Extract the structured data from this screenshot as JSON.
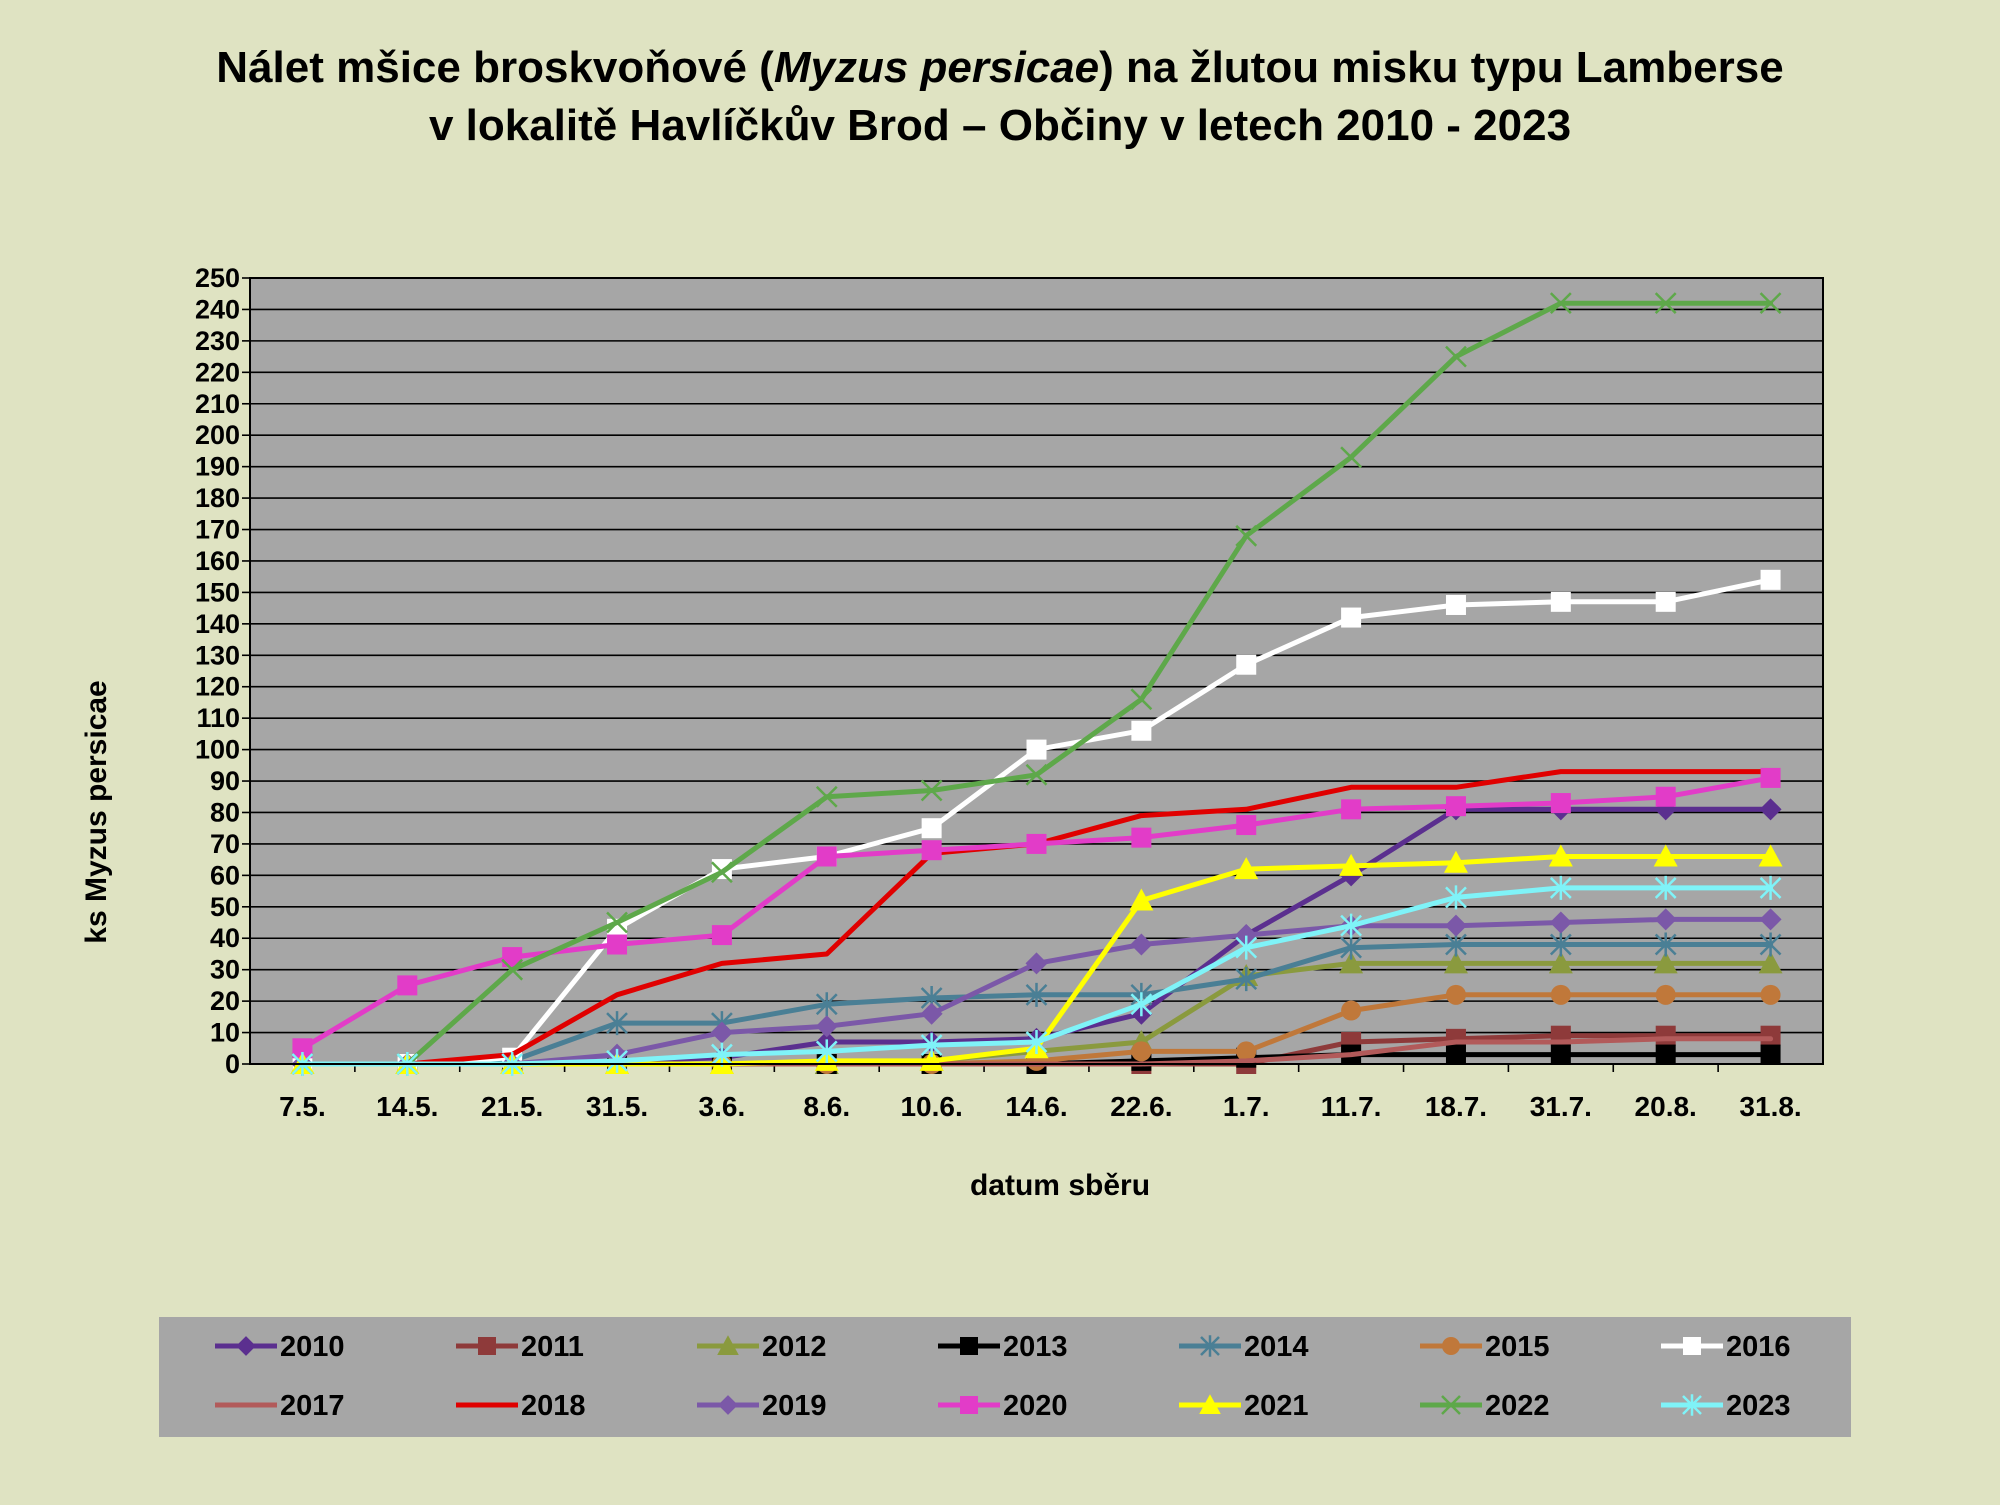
{
  "chart_data": {
    "type": "line",
    "title_line1_pre": "Nálet mšice broskvoňové (",
    "title_line1_italic": "Myzus persicae",
    "title_line1_post": ") na žlutou misku typu Lamberse",
    "title_line2": "v lokalitě Havlíčkův Brod – Občiny v letech 2010 - 2023",
    "xlabel": "datum sběru",
    "ylabel": "ks Myzus persicae",
    "ylim": [
      0,
      250
    ],
    "ytick_step": 10,
    "grid": true,
    "legend_position": "bottom",
    "categories": [
      "7.5.",
      "14.5.",
      "21.5.",
      "31.5.",
      "3.6.",
      "8.6.",
      "10.6.",
      "14.6.",
      "22.6.",
      "1.7.",
      "11.7.",
      "18.7.",
      "31.7.",
      "20.8.",
      "31.8."
    ],
    "series": [
      {
        "name": "2010",
        "color": "#5b2f8f",
        "marker": "diamond",
        "values": [
          0,
          0,
          0,
          1,
          2,
          7,
          7,
          8,
          16,
          41,
          60,
          81,
          81,
          81,
          81
        ]
      },
      {
        "name": "2011",
        "color": "#8e3a3a",
        "marker": "square",
        "values": [
          0,
          0,
          0,
          0,
          0,
          0,
          0,
          0,
          0,
          0,
          7,
          8,
          9,
          9,
          9
        ]
      },
      {
        "name": "2012",
        "color": "#8a9a3e",
        "marker": "triangle",
        "values": [
          0,
          0,
          0,
          0,
          0,
          0,
          1,
          4,
          7,
          28,
          32,
          32,
          32,
          32,
          32
        ]
      },
      {
        "name": "2013",
        "color": "#000000",
        "marker": "square",
        "values": [
          0,
          0,
          0,
          0,
          0,
          0,
          0,
          0,
          1,
          2,
          3,
          3,
          3,
          3,
          3
        ]
      },
      {
        "name": "2014",
        "color": "#4a7f95",
        "marker": "star",
        "values": [
          0,
          0,
          1,
          13,
          13,
          19,
          21,
          22,
          22,
          27,
          37,
          38,
          38,
          38,
          38
        ]
      },
      {
        "name": "2015",
        "color": "#c0783a",
        "marker": "circle",
        "values": [
          0,
          0,
          0,
          0,
          0,
          0,
          0,
          1,
          4,
          4,
          17,
          22,
          22,
          22,
          22
        ]
      },
      {
        "name": "2016",
        "color": "#ffffff",
        "marker": "square",
        "values": [
          0,
          0,
          2,
          43,
          62,
          66,
          75,
          100,
          106,
          127,
          142,
          146,
          147,
          147,
          154
        ]
      },
      {
        "name": "2017",
        "color": "#b25a5a",
        "marker": "none",
        "values": [
          0,
          0,
          0,
          0,
          0,
          0,
          0,
          0,
          0,
          1,
          3,
          7,
          7,
          8,
          8
        ]
      },
      {
        "name": "2018",
        "color": "#e00000",
        "marker": "none",
        "values": [
          0,
          0,
          3,
          22,
          32,
          35,
          67,
          70,
          79,
          81,
          88,
          88,
          93,
          93,
          93
        ]
      },
      {
        "name": "2019",
        "color": "#7b58a8",
        "marker": "diamond",
        "values": [
          0,
          0,
          0,
          3,
          10,
          12,
          16,
          32,
          38,
          41,
          44,
          44,
          45,
          46,
          46
        ]
      },
      {
        "name": "2020",
        "color": "#e23cc8",
        "marker": "square",
        "values": [
          5,
          25,
          34,
          38,
          41,
          66,
          68,
          70,
          72,
          76,
          81,
          82,
          83,
          85,
          91
        ]
      },
      {
        "name": "2021",
        "color": "#ffff00",
        "marker": "triangle",
        "values": [
          0,
          0,
          0,
          0,
          0,
          1,
          1,
          5,
          52,
          62,
          63,
          64,
          66,
          66,
          66
        ]
      },
      {
        "name": "2022",
        "color": "#5ea84a",
        "marker": "x",
        "values": [
          0,
          0,
          30,
          45,
          61,
          85,
          87,
          92,
          116,
          168,
          193,
          225,
          242,
          242,
          242
        ]
      },
      {
        "name": "2023",
        "color": "#7ff3f8",
        "marker": "star",
        "values": [
          0,
          0,
          0,
          1,
          3,
          4,
          6,
          7,
          19,
          37,
          44,
          53,
          56,
          56,
          56
        ]
      }
    ]
  }
}
